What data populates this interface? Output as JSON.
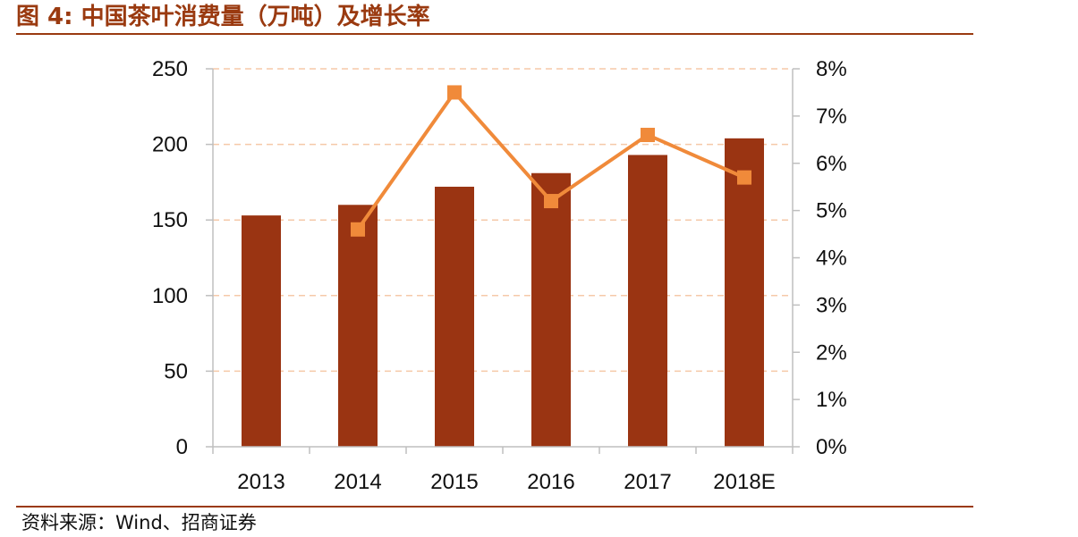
{
  "header": {
    "title": "图 4:  中国茶叶消费量（万吨）及增长率"
  },
  "footer": {
    "source": "资料来源：Wind、招商证券"
  },
  "colors": {
    "bar": "#9a3412",
    "line": "#f08a3a",
    "gridline": "#f5c9a8",
    "accent": "#9a3a10"
  },
  "chart_data": {
    "type": "bar",
    "title": "中国茶叶消费量（万吨）及增长率",
    "categories": [
      "2013",
      "2014",
      "2015",
      "2016",
      "2017",
      "2018E"
    ],
    "series": [
      {
        "values": [
          153,
          160,
          172,
          181,
          193,
          204
        ],
        "kind": "bar",
        "axis": "left"
      },
      {
        "values": [
          null,
          4.6,
          7.5,
          5.2,
          6.6,
          5.7
        ],
        "kind": "line",
        "axis": "right",
        "unit": "%"
      }
    ],
    "left_axis": {
      "ylim": [
        0,
        250
      ],
      "ticks": [
        "0",
        "50",
        "100",
        "150",
        "200",
        "250"
      ]
    },
    "right_axis": {
      "ylim": [
        0,
        8
      ],
      "ticks": [
        "0%",
        "1%",
        "2%",
        "3%",
        "4%",
        "5%",
        "6%",
        "7%",
        "8%"
      ]
    },
    "grid": true,
    "legend": "none"
  }
}
